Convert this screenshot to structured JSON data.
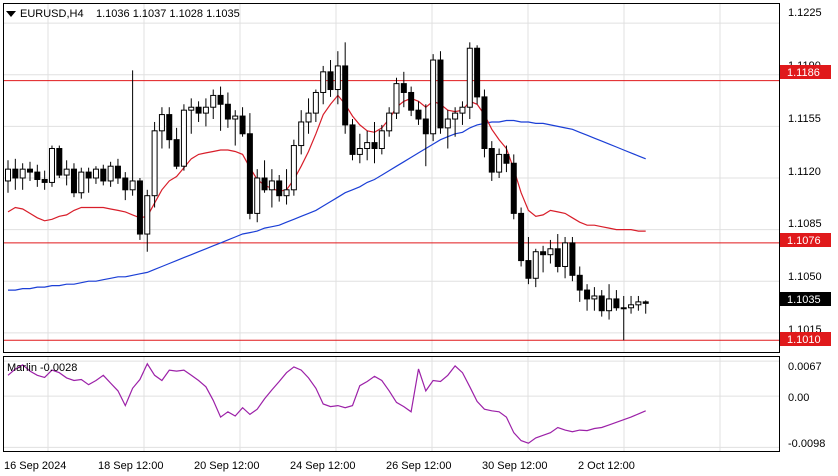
{
  "chart_info": {
    "symbol_tf": "EURUSD,H4",
    "ohlc": "1.1036 1.1037 1.1028 1.1035",
    "indicator_label": "Marlin -0.0028"
  },
  "price_axis": {
    "ticks": [
      "1.1225",
      "1.1190",
      "1.1155",
      "1.1120",
      "1.1085",
      "1.1050",
      "1.1015"
    ],
    "levels": [
      "1.1186",
      "1.1076",
      "1.1010"
    ],
    "current": "1.1035"
  },
  "indicator_axis": {
    "ticks": [
      "0.0067",
      "0.00",
      "-0.0098"
    ]
  },
  "time_axis": [
    "16 Sep 2024",
    "18 Sep 12:00",
    "20 Sep 12:00",
    "24 Sep 12:00",
    "26 Sep 12:00",
    "30 Sep 12:00",
    "2 Oct 12:00"
  ],
  "colors": {
    "background": "#ffffff",
    "grid": "#e0e0e0",
    "level_line": "#e0191b",
    "fast_ma": "#d81e2a",
    "slow_ma": "#1b3fd6",
    "oscillator": "#9c21a8",
    "candle": "#000000",
    "label_black": "#000000"
  },
  "chart_data": {
    "type": "candlestick",
    "title": "EURUSD,H4",
    "series_ohlc_approx": [
      [
        1.1118,
        1.1132,
        1.111,
        1.1126
      ],
      [
        1.1126,
        1.1133,
        1.1112,
        1.112
      ],
      [
        1.112,
        1.113,
        1.1112,
        1.1126
      ],
      [
        1.1126,
        1.1131,
        1.1118,
        1.1124
      ],
      [
        1.1124,
        1.1129,
        1.1114,
        1.1119
      ],
      [
        1.1119,
        1.1125,
        1.1112,
        1.1117
      ],
      [
        1.1117,
        1.1142,
        1.1114,
        1.114
      ],
      [
        1.114,
        1.1142,
        1.112,
        1.1122
      ],
      [
        1.1122,
        1.1132,
        1.1115,
        1.1126
      ],
      [
        1.1126,
        1.113,
        1.1107,
        1.111
      ],
      [
        1.111,
        1.1127,
        1.1106,
        1.1124
      ],
      [
        1.1124,
        1.1127,
        1.111,
        1.112
      ],
      [
        1.112,
        1.1128,
        1.1116,
        1.1126
      ],
      [
        1.1126,
        1.1129,
        1.1115,
        1.1118
      ],
      [
        1.1118,
        1.1131,
        1.1114,
        1.1128
      ],
      [
        1.1128,
        1.1133,
        1.1116,
        1.112
      ],
      [
        1.112,
        1.1124,
        1.1105,
        1.1112
      ],
      [
        1.1112,
        1.1193,
        1.1108,
        1.1118
      ],
      [
        1.1118,
        1.112,
        1.1078,
        1.1082
      ],
      [
        1.1082,
        1.1112,
        1.107,
        1.1108
      ],
      [
        1.1108,
        1.1158,
        1.11,
        1.1152
      ],
      [
        1.1152,
        1.1168,
        1.114,
        1.1163
      ],
      [
        1.1163,
        1.1168,
        1.114,
        1.1146
      ],
      [
        1.1146,
        1.1154,
        1.1126,
        1.1128
      ],
      [
        1.1128,
        1.117,
        1.1125,
        1.1166
      ],
      [
        1.1166,
        1.1174,
        1.115,
        1.1168
      ],
      [
        1.1168,
        1.1172,
        1.1158,
        1.1164
      ],
      [
        1.1164,
        1.1174,
        1.1155,
        1.1168
      ],
      [
        1.1168,
        1.118,
        1.116,
        1.1176
      ],
      [
        1.1176,
        1.1182,
        1.1152,
        1.117
      ],
      [
        1.117,
        1.1178,
        1.1154,
        1.116
      ],
      [
        1.116,
        1.1166,
        1.1142,
        1.1162
      ],
      [
        1.1162,
        1.1168,
        1.1148,
        1.115
      ],
      [
        1.115,
        1.1164,
        1.1092,
        1.1096
      ],
      [
        1.1096,
        1.1126,
        1.109,
        1.112
      ],
      [
        1.112,
        1.1132,
        1.111,
        1.1112
      ],
      [
        1.1112,
        1.1126,
        1.11,
        1.1118
      ],
      [
        1.1118,
        1.1122,
        1.1104,
        1.1108
      ],
      [
        1.1108,
        1.1126,
        1.1102,
        1.1112
      ],
      [
        1.1112,
        1.1146,
        1.1108,
        1.1142
      ],
      [
        1.1142,
        1.1166,
        1.1136,
        1.1158
      ],
      [
        1.1158,
        1.1174,
        1.115,
        1.1164
      ],
      [
        1.1164,
        1.118,
        1.1158,
        1.1178
      ],
      [
        1.1178,
        1.1196,
        1.117,
        1.1192
      ],
      [
        1.1192,
        1.12,
        1.1175,
        1.118
      ],
      [
        1.118,
        1.1206,
        1.117,
        1.1196
      ],
      [
        1.1196,
        1.1212,
        1.115,
        1.1156
      ],
      [
        1.1156,
        1.116,
        1.1132,
        1.1136
      ],
      [
        1.1136,
        1.115,
        1.113,
        1.114
      ],
      [
        1.114,
        1.1152,
        1.1132,
        1.1144
      ],
      [
        1.1144,
        1.1158,
        1.113,
        1.114
      ],
      [
        1.114,
        1.1156,
        1.1136,
        1.1152
      ],
      [
        1.1152,
        1.1168,
        1.1148,
        1.1164
      ],
      [
        1.1164,
        1.1188,
        1.116,
        1.1184
      ],
      [
        1.1184,
        1.1192,
        1.1168,
        1.1178
      ],
      [
        1.1178,
        1.1182,
        1.1162,
        1.1166
      ],
      [
        1.1166,
        1.1172,
        1.1156,
        1.116
      ],
      [
        1.116,
        1.117,
        1.1128,
        1.115
      ],
      [
        1.115,
        1.1204,
        1.1145,
        1.12
      ],
      [
        1.12,
        1.1206,
        1.115,
        1.1154
      ],
      [
        1.1154,
        1.1166,
        1.114,
        1.116
      ],
      [
        1.116,
        1.1168,
        1.1148,
        1.1164
      ],
      [
        1.1164,
        1.1172,
        1.1156,
        1.1168
      ],
      [
        1.1168,
        1.1212,
        1.116,
        1.1208
      ],
      [
        1.1208,
        1.121,
        1.117,
        1.1175
      ],
      [
        1.1175,
        1.118,
        1.1134,
        1.114
      ],
      [
        1.114,
        1.1145,
        1.1118,
        1.1124
      ],
      [
        1.1124,
        1.114,
        1.112,
        1.1136
      ],
      [
        1.1136,
        1.1142,
        1.1124,
        1.113
      ],
      [
        1.113,
        1.1136,
        1.1092,
        1.1096
      ],
      [
        1.1096,
        1.11,
        1.106,
        1.1064
      ],
      [
        1.1064,
        1.108,
        1.1048,
        1.1052
      ],
      [
        1.1052,
        1.1072,
        1.1046,
        1.107
      ],
      [
        1.107,
        1.1074,
        1.1056,
        1.1068
      ],
      [
        1.1068,
        1.1078,
        1.1062,
        1.1072
      ],
      [
        1.1072,
        1.1082,
        1.1056,
        1.106
      ],
      [
        1.106,
        1.108,
        1.1052,
        1.1076
      ],
      [
        1.1076,
        1.108,
        1.105,
        1.1054
      ],
      [
        1.1054,
        1.106,
        1.1036,
        1.1044
      ],
      [
        1.1044,
        1.1048,
        1.103,
        1.1038
      ],
      [
        1.1038,
        1.1046,
        1.103,
        1.104
      ],
      [
        1.104,
        1.1044,
        1.1026,
        1.103
      ],
      [
        1.103,
        1.1048,
        1.1024,
        1.1038
      ],
      [
        1.1038,
        1.1044,
        1.103,
        1.1032
      ],
      [
        1.1032,
        1.104,
        1.101,
        1.1032
      ],
      [
        1.1032,
        1.104,
        1.1028,
        1.1034
      ],
      [
        1.1034,
        1.104,
        1.103,
        1.1036
      ],
      [
        1.1036,
        1.1037,
        1.1028,
        1.1035
      ]
    ],
    "fast_ma_approx": [
      1.1097,
      1.11,
      1.1099,
      1.1096,
      1.1093,
      1.1091,
      1.1092,
      1.1094,
      1.1095,
      1.1098,
      1.11,
      1.11,
      1.11,
      1.11,
      1.1099,
      1.1098,
      1.1097,
      1.1095,
      1.1093,
      1.1094,
      1.1103,
      1.1112,
      1.1118,
      1.1121,
      1.1127,
      1.1133,
      1.1136,
      1.1137,
      1.1138,
      1.1139,
      1.1139,
      1.1138,
      1.1136,
      1.1127,
      1.1119,
      1.1115,
      1.1113,
      1.1111,
      1.1112,
      1.1119,
      1.1128,
      1.1138,
      1.115,
      1.1163,
      1.117,
      1.1176,
      1.117,
      1.1162,
      1.1156,
      1.1152,
      1.1151,
      1.1154,
      1.116,
      1.1168,
      1.1172,
      1.1174,
      1.1172,
      1.1168,
      1.1172,
      1.117,
      1.1166,
      1.1165,
      1.1166,
      1.1172,
      1.117,
      1.1163,
      1.1153,
      1.1146,
      1.114,
      1.1126,
      1.111,
      1.1098,
      1.1094,
      1.1095,
      1.1098,
      1.1097,
      1.1096,
      1.1093,
      1.109,
      1.1088,
      1.1088,
      1.1087,
      1.1086,
      1.1085,
      1.1085,
      1.1085,
      1.1084,
      1.1084
    ],
    "slow_ma_approx": [
      1.1044,
      1.1044,
      1.1045,
      1.1045,
      1.1046,
      1.1046,
      1.1047,
      1.1047,
      1.1048,
      1.1048,
      1.1049,
      1.105,
      1.105,
      1.1051,
      1.1052,
      1.1053,
      1.1053,
      1.1054,
      1.1055,
      1.1056,
      1.1058,
      1.106,
      1.1062,
      1.1064,
      1.1066,
      1.1068,
      1.107,
      1.1072,
      1.1074,
      1.1076,
      1.1078,
      1.108,
      1.1082,
      1.1083,
      1.1084,
      1.1086,
      1.1087,
      1.1088,
      1.109,
      1.1092,
      1.1094,
      1.1096,
      1.1098,
      1.1101,
      1.1104,
      1.1107,
      1.111,
      1.1112,
      1.1114,
      1.1117,
      1.1119,
      1.1122,
      1.1125,
      1.1128,
      1.1131,
      1.1134,
      1.1137,
      1.114,
      1.1143,
      1.1146,
      1.1148,
      1.115,
      1.1151,
      1.1154,
      1.1156,
      1.1157,
      1.1158,
      1.1158,
      1.1159,
      1.1159,
      1.1158,
      1.1158,
      1.1157,
      1.1157,
      1.1156,
      1.1155,
      1.1154,
      1.1153,
      1.1151,
      1.1149,
      1.1147,
      1.1145,
      1.1143,
      1.1141,
      1.1139,
      1.1137,
      1.1135,
      1.1133
    ],
    "oscillator_approx": [
      0.004,
      0.0052,
      0.006,
      0.0048,
      0.004,
      0.0036,
      0.005,
      0.0045,
      0.0035,
      0.003,
      0.0032,
      0.0022,
      0.003,
      0.004,
      0.0025,
      0.001,
      -0.0018,
      0.0015,
      0.0032,
      0.0062,
      0.004,
      0.003,
      0.005,
      0.0048,
      0.005,
      0.004,
      0.003,
      0.0018,
      -0.0008,
      -0.004,
      -0.003,
      -0.0038,
      -0.0022,
      -0.0035,
      -0.0025,
      -0.0005,
      0.0012,
      0.0028,
      0.0045,
      0.0056,
      0.005,
      0.0035,
      0.0015,
      -0.0015,
      -0.002,
      -0.0018,
      -0.0022,
      -0.0018,
      0.002,
      0.0028,
      0.0038,
      0.003,
      0.001,
      -0.0012,
      -0.002,
      -0.003,
      0.0052,
      0.001,
      0.003,
      0.0028,
      0.004,
      0.0058,
      0.0045,
      0.0018,
      -0.001,
      -0.0025,
      -0.0028,
      -0.003,
      -0.004,
      -0.007,
      -0.0085,
      -0.009,
      -0.008,
      -0.0075,
      -0.007,
      -0.006,
      -0.0065,
      -0.0068,
      -0.0065,
      -0.0066,
      -0.0062,
      -0.006,
      -0.0055,
      -0.005,
      -0.0045,
      -0.004,
      -0.0034,
      -0.0028
    ],
    "ylim": [
      1.1002,
      1.1238
    ],
    "indicator_ylim": [
      -0.0105,
      0.0075
    ],
    "levels": [
      1.1186,
      1.1076,
      1.101
    ],
    "current": 1.1035,
    "grid": true
  }
}
